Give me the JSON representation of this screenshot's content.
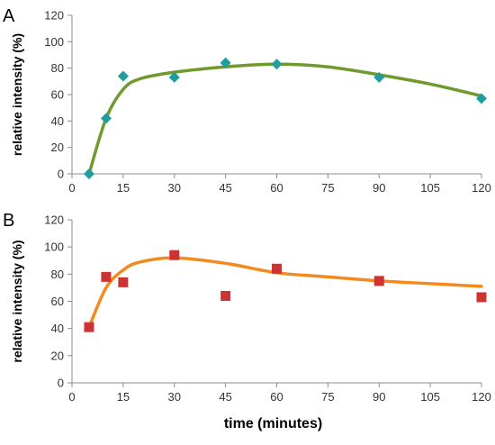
{
  "chart_data": [
    {
      "type": "scatter",
      "panel_label": "A",
      "xlabel": "",
      "ylabel": "relative intensity (%)",
      "xlim": [
        0,
        120
      ],
      "ylim": [
        0,
        120
      ],
      "xticks": [
        "0",
        "15",
        "30",
        "45",
        "60",
        "75",
        "90",
        "105",
        "120"
      ],
      "yticks": [
        "0",
        "20",
        "40",
        "60",
        "80",
        "100",
        "120"
      ],
      "grid": false,
      "legend": "none",
      "marker": "diamond",
      "marker_color": "#1e9e9e",
      "fit_color": "#6f9a2e",
      "points": [
        {
          "x": 5,
          "y": 0
        },
        {
          "x": 10,
          "y": 42
        },
        {
          "x": 15,
          "y": 74
        },
        {
          "x": 30,
          "y": 73
        },
        {
          "x": 45,
          "y": 84
        },
        {
          "x": 60,
          "y": 83
        },
        {
          "x": 90,
          "y": 73
        },
        {
          "x": 120,
          "y": 57
        }
      ],
      "fit": [
        {
          "x": 5,
          "y": 0
        },
        {
          "x": 10,
          "y": 42
        },
        {
          "x": 15,
          "y": 64
        },
        {
          "x": 20,
          "y": 72
        },
        {
          "x": 30,
          "y": 77
        },
        {
          "x": 45,
          "y": 81
        },
        {
          "x": 60,
          "y": 83
        },
        {
          "x": 75,
          "y": 81
        },
        {
          "x": 90,
          "y": 75
        },
        {
          "x": 105,
          "y": 68
        },
        {
          "x": 120,
          "y": 59
        }
      ]
    },
    {
      "type": "scatter",
      "panel_label": "B",
      "xlabel": "time (minutes)",
      "ylabel": "relative intensity (%)",
      "xlim": [
        0,
        120
      ],
      "ylim": [
        0,
        120
      ],
      "xticks": [
        "0",
        "15",
        "30",
        "45",
        "60",
        "75",
        "90",
        "105",
        "120"
      ],
      "yticks": [
        "0",
        "20",
        "40",
        "60",
        "80",
        "100",
        "120"
      ],
      "grid": false,
      "legend": "none",
      "marker": "square",
      "marker_color": "#cc3333",
      "fit_color": "#f28a1e",
      "points": [
        {
          "x": 5,
          "y": 41
        },
        {
          "x": 10,
          "y": 78
        },
        {
          "x": 15,
          "y": 74
        },
        {
          "x": 30,
          "y": 94
        },
        {
          "x": 45,
          "y": 64
        },
        {
          "x": 60,
          "y": 84
        },
        {
          "x": 90,
          "y": 75
        },
        {
          "x": 120,
          "y": 63
        }
      ],
      "fit": [
        {
          "x": 5,
          "y": 41
        },
        {
          "x": 10,
          "y": 70
        },
        {
          "x": 15,
          "y": 83
        },
        {
          "x": 20,
          "y": 89
        },
        {
          "x": 30,
          "y": 92
        },
        {
          "x": 45,
          "y": 88
        },
        {
          "x": 60,
          "y": 81
        },
        {
          "x": 75,
          "y": 78
        },
        {
          "x": 90,
          "y": 75
        },
        {
          "x": 105,
          "y": 73
        },
        {
          "x": 120,
          "y": 71
        }
      ]
    }
  ]
}
